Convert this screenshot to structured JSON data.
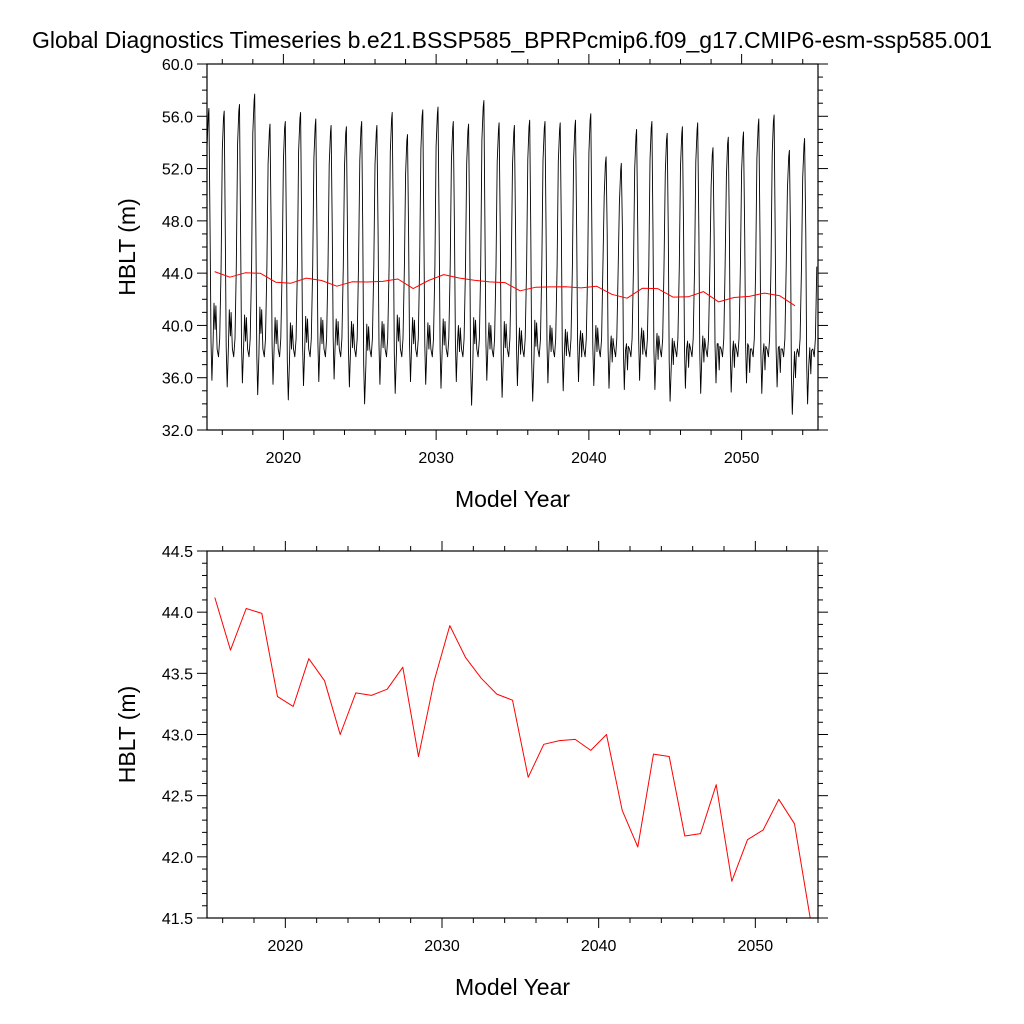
{
  "title": "Global Diagnostics Timeseries b.e21.BSSP585_BPRPcmip6.f09_g17.CMIP6-esm-ssp585.001",
  "colors": {
    "monthly": "#000000",
    "annual": "#ff0000",
    "axes": "#000000",
    "background": "#ffffff"
  },
  "chart_data": [
    {
      "type": "line",
      "xlabel": "Model Year",
      "ylabel": "HBLT (m)",
      "xlim": [
        2015,
        2055
      ],
      "ylim": [
        32.0,
        60.0
      ],
      "xticks": [
        2020,
        2030,
        2040,
        2050
      ],
      "yticks": [
        32.0,
        36.0,
        40.0,
        44.0,
        48.0,
        52.0,
        56.0,
        60.0
      ],
      "grid": false,
      "series": [
        {
          "style": "monthly",
          "color": "#000000",
          "year_start": 2015,
          "year_end": 2055,
          "annual_max": [
            56.6,
            56.4,
            56.9,
            57.7,
            55.4,
            55.6,
            56.3,
            55.8,
            55.3,
            55.2,
            55.6,
            55.3,
            56.3,
            54.6,
            56.5,
            56.7,
            55.6,
            55.4,
            57.2,
            55.5,
            55.3,
            55.7,
            55.6,
            55.5,
            55.7,
            56.2,
            52.9,
            52.4,
            55.0,
            55.6,
            54.7,
            55.2,
            55.5,
            53.6,
            54.4,
            54.8,
            55.8,
            56.1,
            53.4,
            54.3
          ],
          "annual_min": [
            35.8,
            35.3,
            35.6,
            34.7,
            35.5,
            34.3,
            35.4,
            35.7,
            35.9,
            35.3,
            34.0,
            35.5,
            34.8,
            35.7,
            35.5,
            35.2,
            35.7,
            33.9,
            35.8,
            34.5,
            35.4,
            34.2,
            35.6,
            35.0,
            35.7,
            35.4,
            35.2,
            35.1,
            35.8,
            35.1,
            34.2,
            35.2,
            34.8,
            35.6,
            34.9,
            35.6,
            34.8,
            35.3,
            33.2,
            34.0
          ],
          "secondary_peak": [
            41.7,
            41.2,
            40.8,
            41.4,
            40.6,
            40.2,
            40.7,
            40.6,
            40.5,
            40.3,
            40.1,
            40.3,
            40.8,
            40.6,
            40.2,
            40.5,
            40.0,
            40.6,
            40.2,
            40.3,
            39.8,
            40.4,
            40.0,
            39.7,
            39.6,
            40.0,
            39.2,
            38.6,
            39.8,
            39.4,
            39.0,
            38.8,
            39.2,
            38.6,
            38.8,
            38.4,
            38.6,
            38.4,
            38.0,
            38.3
          ]
        },
        {
          "style": "annual",
          "color": "#ff0000",
          "x": [
            2015.5,
            2016.5,
            2017.5,
            2018.5,
            2019.5,
            2020.5,
            2021.5,
            2022.5,
            2023.5,
            2024.5,
            2025.5,
            2026.5,
            2027.5,
            2028.5,
            2029.5,
            2030.5,
            2031.5,
            2032.5,
            2033.5,
            2034.5,
            2035.5,
            2036.5,
            2037.5,
            2038.5,
            2039.5,
            2040.5,
            2041.5,
            2042.5,
            2043.5,
            2044.5,
            2045.5,
            2046.5,
            2047.5,
            2048.5,
            2049.5,
            2050.5,
            2051.5,
            2052.5,
            2053.5
          ],
          "y": [
            44.12,
            43.69,
            44.03,
            43.99,
            43.31,
            43.23,
            43.62,
            43.44,
            43.0,
            43.34,
            43.32,
            43.37,
            43.55,
            42.82,
            43.44,
            43.89,
            43.63,
            43.46,
            43.33,
            43.28,
            42.65,
            42.92,
            42.95,
            42.96,
            42.87,
            43.0,
            42.38,
            42.08,
            42.84,
            42.82,
            42.17,
            42.19,
            42.59,
            41.8,
            42.14,
            42.22,
            42.47,
            42.27,
            41.5
          ]
        }
      ]
    },
    {
      "type": "line",
      "xlabel": "Model Year",
      "ylabel": "HBLT (m)",
      "xlim": [
        2015,
        2054
      ],
      "ylim": [
        41.5,
        44.5
      ],
      "xticks": [
        2020,
        2030,
        2040,
        2050
      ],
      "yticks": [
        41.5,
        42.0,
        42.5,
        43.0,
        43.5,
        44.0,
        44.5
      ],
      "grid": false,
      "series": [
        {
          "style": "annual",
          "color": "#ff0000",
          "x": [
            2015.5,
            2016.5,
            2017.5,
            2018.5,
            2019.5,
            2020.5,
            2021.5,
            2022.5,
            2023.5,
            2024.5,
            2025.5,
            2026.5,
            2027.5,
            2028.5,
            2029.5,
            2030.5,
            2031.5,
            2032.5,
            2033.5,
            2034.5,
            2035.5,
            2036.5,
            2037.5,
            2038.5,
            2039.5,
            2040.5,
            2041.5,
            2042.5,
            2043.5,
            2044.5,
            2045.5,
            2046.5,
            2047.5,
            2048.5,
            2049.5,
            2050.5,
            2051.5,
            2052.5,
            2053.5
          ],
          "y": [
            44.12,
            43.69,
            44.03,
            43.99,
            43.31,
            43.23,
            43.62,
            43.44,
            43.0,
            43.34,
            43.32,
            43.37,
            43.55,
            42.82,
            43.44,
            43.89,
            43.63,
            43.46,
            43.33,
            43.28,
            42.65,
            42.92,
            42.95,
            42.96,
            42.87,
            43.0,
            42.38,
            42.08,
            42.84,
            42.82,
            42.17,
            42.19,
            42.59,
            41.8,
            42.14,
            42.22,
            42.47,
            42.27,
            41.5
          ]
        }
      ]
    }
  ]
}
